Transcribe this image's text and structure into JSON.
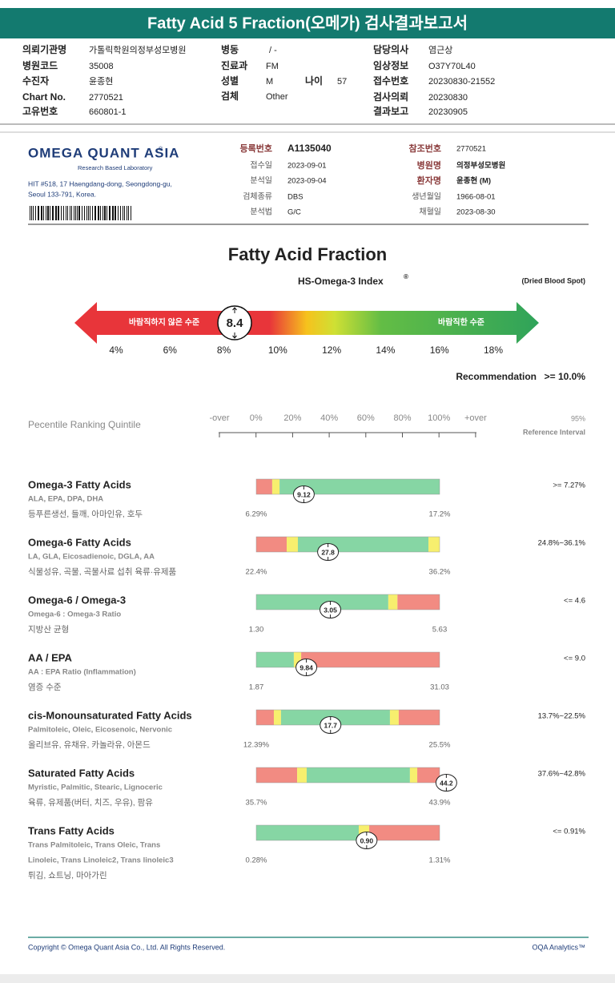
{
  "header": {
    "title": "Fatty Acid 5 Fraction(오메가) 검사결과보고서"
  },
  "patient": {
    "fields": [
      {
        "label": "의뢰기관명",
        "value": "가톨릭학원의정부성모병원"
      },
      {
        "label": "병원코드",
        "value": "35008"
      },
      {
        "label": "수진자",
        "value": "윤종현"
      },
      {
        "label": "Chart No.",
        "value": "2770521"
      },
      {
        "label": "고유번호",
        "value": "660801-1"
      },
      {
        "label": "병동",
        "value": "/ -"
      },
      {
        "label": "진료과",
        "value": "FM"
      },
      {
        "label": "성별",
        "value": "M"
      },
      {
        "label": "나이",
        "value": "57"
      },
      {
        "label": "검체",
        "value": "Other"
      },
      {
        "label": "담당의사",
        "value": "염근상"
      },
      {
        "label": "임상정보",
        "value": "O37Y70L40"
      },
      {
        "label": "접수번호",
        "value": "20230830-21552"
      },
      {
        "label": "검사의뢰",
        "value": "20230830"
      },
      {
        "label": "결과보고",
        "value": "20230905"
      }
    ]
  },
  "lab": {
    "logo": "OMEGA QUANT ASIA",
    "logo_mark": "®",
    "tagline": "Research Based Laboratory",
    "address": [
      "HIT #518, 17 Haengdang-dong, Seongdong-gu,",
      "Seoul 133-791, Korea."
    ],
    "fields": [
      {
        "label": "등록번호",
        "value": "A1135040"
      },
      {
        "label": "접수일",
        "value": "2023-09-01"
      },
      {
        "label": "분석일",
        "value": "2023-09-04"
      },
      {
        "label": "검체종류",
        "value": "DBS"
      },
      {
        "label": "분석법",
        "value": "G/C"
      },
      {
        "label": "참조번호",
        "value": "2770521"
      },
      {
        "label": "병원명",
        "value": "의정부성모병원"
      },
      {
        "label": "환자명",
        "value": "윤종현 (M)"
      },
      {
        "label": "생년월일",
        "value": "1966-08-01"
      },
      {
        "label": "채혈일",
        "value": "2023-08-30"
      }
    ]
  },
  "section_title": "Fatty Acid Fraction",
  "index_label": "HS-Omega-3 Index",
  "index_mark": "®",
  "sample_type": "(Dried Blood Spot)",
  "gauge": {
    "left_label": "바람직하지 않은 수준",
    "right_label": "바람직한 수준",
    "value": {
      "value": 8.4,
      "label": "8.4"
    },
    "ticks": [
      {
        "value": 4,
        "label": "4%"
      },
      {
        "value": 6,
        "label": "6%"
      },
      {
        "value": 8,
        "label": "8%"
      },
      {
        "value": 10,
        "label": "10%"
      },
      {
        "value": 12,
        "label": "12%"
      },
      {
        "value": 14,
        "label": "14%"
      },
      {
        "value": 16,
        "label": "16%"
      },
      {
        "value": 18,
        "label": "18%"
      }
    ]
  },
  "recommendation": {
    "label": "Recommendation",
    "value": ">= 10.0%"
  },
  "percentile": {
    "title": "Pecentile Ranking Quintile",
    "scale_labels": [
      "-over",
      "0%",
      "20%",
      "40%",
      "60%",
      "80%",
      "100%",
      "+over"
    ],
    "ref_header": [
      "95%",
      "Reference Interval"
    ]
  },
  "rows": [
    {
      "name": "Omega-3 Fatty Acids",
      "subtitle": [
        "ALA, EPA, DPA, DHA"
      ],
      "foods": "등푸른생선, 들깨, 아마인유, 호두",
      "value": {
        "value": 9.12,
        "label": "9.12"
      },
      "low": {
        "value": 6.29,
        "label": "6.29%"
      },
      "high": {
        "value": 17.2,
        "label": "17.2%"
      },
      "reference": ">= 7.27%",
      "zones": [
        {
          "from": 0,
          "to": 8.7,
          "color": "#f28b82"
        },
        {
          "from": 8.7,
          "to": 12.7,
          "color": "#f7ef6e"
        },
        {
          "from": 12.7,
          "to": 100,
          "color": "#86d6a4"
        }
      ]
    },
    {
      "name": "Omega-6 Fatty Acids",
      "subtitle": [
        "LA, GLA, Eicosadienoic, DGLA, AA"
      ],
      "foods": "식물성유, 곡물, 곡물사료 섭취 육류·유제품",
      "value": {
        "value": 27.8,
        "label": "27.8"
      },
      "low": {
        "value": 22.4,
        "label": "22.4%"
      },
      "high": {
        "value": 36.2,
        "label": "36.2%"
      },
      "reference": "24.8%~36.1%",
      "zones": [
        {
          "from": 0,
          "to": 16.6,
          "color": "#f28b82"
        },
        {
          "from": 16.6,
          "to": 22.7,
          "color": "#f7ef6e"
        },
        {
          "from": 22.7,
          "to": 93.9,
          "color": "#86d6a4"
        },
        {
          "from": 93.9,
          "to": 100,
          "color": "#f7ef6e"
        }
      ]
    },
    {
      "name": "Omega-6 / Omega-3",
      "subtitle": [
        "Omega-6 : Omega-3 Ratio"
      ],
      "foods": "지방산 균형",
      "value": {
        "value": 3.05,
        "label": "3.05"
      },
      "low": {
        "value": 1.3,
        "label": "1.30"
      },
      "high": {
        "value": 5.63,
        "label": "5.63"
      },
      "reference": "<= 4.6",
      "zones": [
        {
          "from": 0,
          "to": 72,
          "color": "#86d6a4"
        },
        {
          "from": 72,
          "to": 77,
          "color": "#f7ef6e"
        },
        {
          "from": 77,
          "to": 100,
          "color": "#f28b82"
        }
      ]
    },
    {
      "name": "AA / EPA",
      "subtitle": [
        "AA : EPA Ratio (Inflammation)"
      ],
      "foods": "염증 수준",
      "value": {
        "value": 9.84,
        "label": "9.84"
      },
      "low": {
        "value": 1.87,
        "label": "1.87"
      },
      "high": {
        "value": 31.03,
        "label": "31.03"
      },
      "reference": "<= 9.0",
      "zones": [
        {
          "from": 0,
          "to": 20.5,
          "color": "#86d6a4"
        },
        {
          "from": 20.5,
          "to": 24.5,
          "color": "#f7ef6e"
        },
        {
          "from": 24.5,
          "to": 100,
          "color": "#f28b82"
        }
      ]
    },
    {
      "name": "cis-Monounsaturated Fatty Acids",
      "subtitle": [
        "Palmitoleic, Oleic, Eicosenoic, Nervonic"
      ],
      "foods": "올리브유, 유채유, 카놀라유, 아몬드",
      "value": {
        "value": 17.7,
        "label": "17.7"
      },
      "low": {
        "value": 12.39,
        "label": "12.39%"
      },
      "high": {
        "value": 25.5,
        "label": "25.5%"
      },
      "reference": "13.7%~22.5%",
      "zones": [
        {
          "from": 0,
          "to": 9.6,
          "color": "#f28b82"
        },
        {
          "from": 9.6,
          "to": 13.5,
          "color": "#f7ef6e"
        },
        {
          "from": 13.5,
          "to": 72.9,
          "color": "#86d6a4"
        },
        {
          "from": 72.9,
          "to": 77.7,
          "color": "#f7ef6e"
        },
        {
          "from": 77.7,
          "to": 100,
          "color": "#f28b82"
        }
      ]
    },
    {
      "name": "Saturated Fatty Acids",
      "subtitle": [
        "Myristic, Palmitic, Stearic, Lignoceric"
      ],
      "foods": "육류, 유제품(버터, 치즈, 우유), 팜유",
      "value": {
        "value": 44.2,
        "label": "44.2"
      },
      "low": {
        "value": 35.7,
        "label": "35.7%"
      },
      "high": {
        "value": 43.9,
        "label": "43.9%"
      },
      "reference": "37.6%~42.8%",
      "zones": [
        {
          "from": 0,
          "to": 22.3,
          "color": "#f28b82"
        },
        {
          "from": 22.3,
          "to": 27.5,
          "color": "#f7ef6e"
        },
        {
          "from": 27.5,
          "to": 83.8,
          "color": "#86d6a4"
        },
        {
          "from": 83.8,
          "to": 87.8,
          "color": "#f7ef6e"
        },
        {
          "from": 87.8,
          "to": 100,
          "color": "#f28b82"
        }
      ]
    },
    {
      "name": "Trans Fatty Acids",
      "subtitle": [
        "Trans Palmitoleic, Trans Oleic, Trans",
        "Linoleic, Trans Linoleic2, Trans linoleic3"
      ],
      "foods": "튀김, 쇼트닝, 마아가린",
      "value": {
        "value": 0.9,
        "label": "0.90"
      },
      "low": {
        "value": 0.28,
        "label": "0.28%"
      },
      "high": {
        "value": 1.31,
        "label": "1.31%"
      },
      "reference": "<= 0.91%",
      "zones": [
        {
          "from": 0,
          "to": 55.9,
          "color": "#86d6a4"
        },
        {
          "from": 55.9,
          "to": 61.6,
          "color": "#f7ef6e"
        },
        {
          "from": 61.6,
          "to": 100,
          "color": "#f28b82"
        }
      ]
    }
  ],
  "footer": {
    "copyright": "Copyright © Omega Quant Asia Co., Ltd.  All Rights Reserved.",
    "brand": "OQA Analytics™"
  }
}
